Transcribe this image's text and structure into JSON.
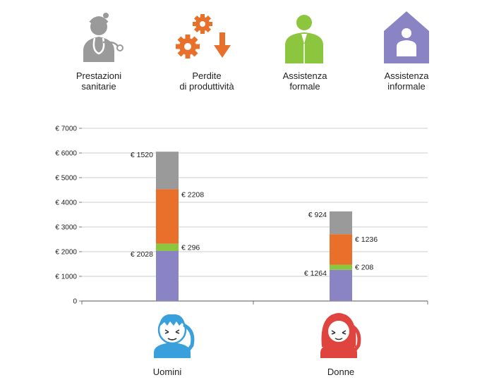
{
  "legend": [
    {
      "id": "health",
      "line1": "Prestazioni",
      "line2": "sanitarie",
      "icon": "doctor-icon",
      "color": "#9a9a9a"
    },
    {
      "id": "productivity",
      "line1": "Perdite",
      "line2": "di produttività",
      "icon": "gears-down-arrow-icon",
      "color": "#e8702a"
    },
    {
      "id": "formal",
      "line1": "Assistenza",
      "line2": "formale",
      "icon": "person-icon",
      "color": "#8cc63f"
    },
    {
      "id": "informal",
      "line1": "Assistenza",
      "line2": "informale",
      "icon": "house-person-icon",
      "color": "#8a84c4"
    }
  ],
  "chart_data": {
    "type": "bar",
    "stacked": true,
    "categories": [
      "Uomini",
      "Donne"
    ],
    "series": [
      {
        "id": "informal",
        "values": [
          2028,
          1264
        ],
        "labels": [
          "€ 2028",
          "€ 1264"
        ],
        "color": "#8a84c4"
      },
      {
        "id": "formal",
        "values": [
          296,
          208
        ],
        "labels": [
          "€ 296",
          "€ 208"
        ],
        "color": "#8cc63f"
      },
      {
        "id": "productivity",
        "values": [
          2208,
          1236
        ],
        "labels": [
          "€ 2208",
          "€ 1236"
        ],
        "color": "#e8702a"
      },
      {
        "id": "health",
        "values": [
          1520,
          924
        ],
        "labels": [
          "€ 1520",
          "€ 924"
        ],
        "color": "#9a9a9a"
      }
    ],
    "ylim": [
      0,
      7000
    ],
    "yticks": [
      0,
      1000,
      2000,
      3000,
      4000,
      5000,
      6000,
      7000
    ],
    "ytick_labels": [
      "0",
      "€ 1000",
      "€ 2000",
      "€ 3000",
      "€ 4000",
      "€ 5000",
      "€ 6000",
      "€ 7000"
    ],
    "grid": true
  },
  "category_icons": [
    {
      "category": "Uomini",
      "icon": "man-headache-icon",
      "hair": "#3aa0dc",
      "accent": "#3aa0dc"
    },
    {
      "category": "Donne",
      "icon": "woman-headache-icon",
      "hair": "#e0443e",
      "accent": "#e0443e"
    }
  ]
}
